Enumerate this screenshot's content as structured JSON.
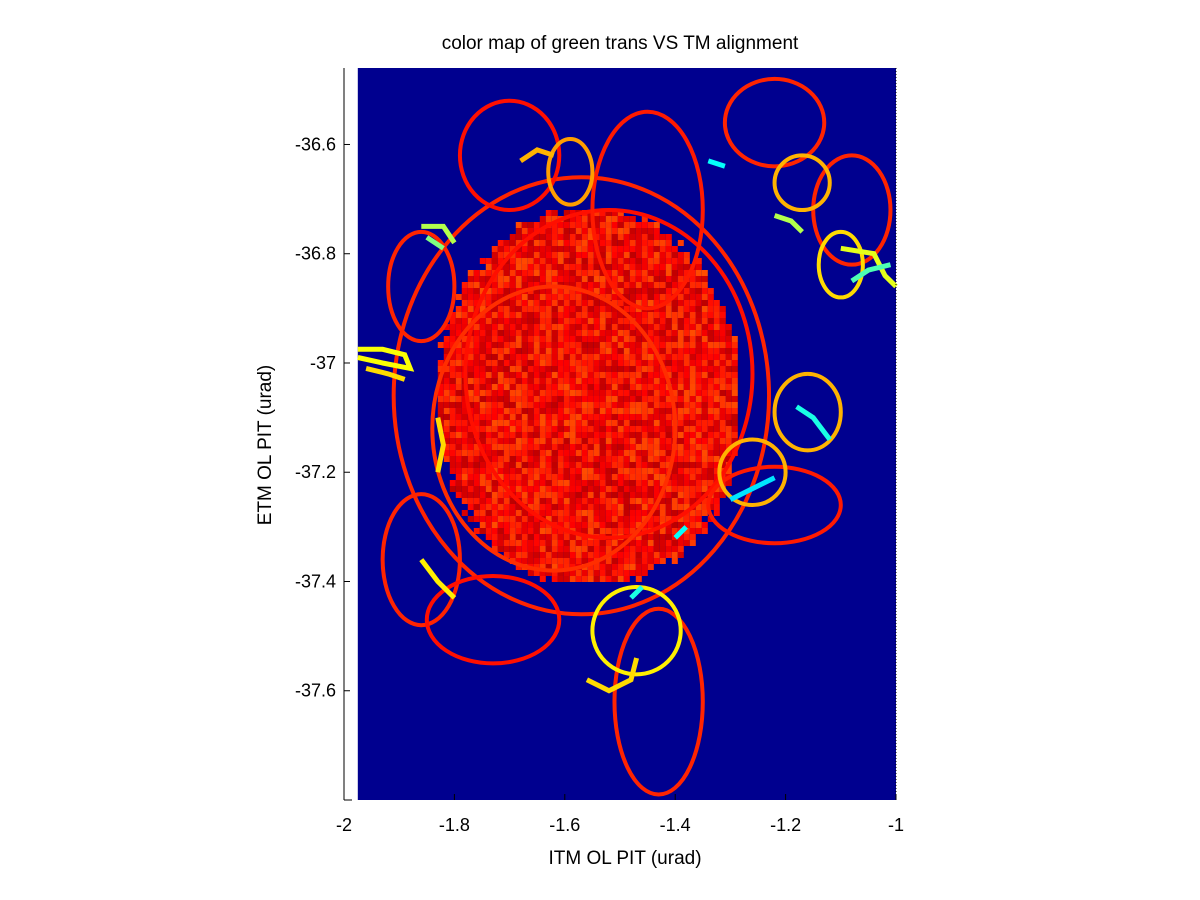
{
  "chart_data": {
    "type": "heatmap",
    "title": "color map of green trans VS TM alignment",
    "xlabel": "ITM OL PIT (urad)",
    "ylabel": "ETM OL PIT (urad)",
    "xlim": [
      -2,
      -1
    ],
    "ylim": [
      -37.8,
      -36.46
    ],
    "x_ticks": [
      -2,
      -1.8,
      -1.6,
      -1.4,
      -1.2,
      -1
    ],
    "x_tick_labels": [
      "-2",
      "-1.8",
      "-1.6",
      "-1.4",
      "-1.2",
      "-1"
    ],
    "y_ticks": [
      -36.6,
      -36.8,
      -37,
      -37.2,
      -37.4,
      -37.6
    ],
    "y_tick_labels": [
      "-36.6",
      "-36.8",
      "-37",
      "-37.2",
      "-37.4",
      "-37.6"
    ],
    "background_color": "#00008f",
    "colormap": "jet",
    "grid": false,
    "map_extent": {
      "x": [
        -1.975,
        -1.0
      ],
      "y": [
        -37.8,
        -36.46
      ]
    },
    "dense_core": {
      "center": [
        -1.56,
        -37.06
      ],
      "radius_x": 0.27,
      "radius_y": 0.34
    },
    "loops": [
      {
        "center": [
          -1.57,
          -37.06
        ],
        "radius_x": 0.34,
        "radius_y": 0.4,
        "level": 0.84
      },
      {
        "center": [
          -1.52,
          -37.02
        ],
        "radius_x": 0.26,
        "radius_y": 0.3,
        "level": 0.86
      },
      {
        "center": [
          -1.62,
          -37.12
        ],
        "radius_x": 0.22,
        "radius_y": 0.26,
        "level": 0.83
      },
      {
        "center": [
          -1.45,
          -36.72
        ],
        "radius_x": 0.1,
        "radius_y": 0.18,
        "level": 0.85
      },
      {
        "center": [
          -1.22,
          -36.56
        ],
        "radius_x": 0.09,
        "radius_y": 0.08,
        "level": 0.84
      },
      {
        "center": [
          -1.08,
          -36.72
        ],
        "radius_x": 0.07,
        "radius_y": 0.1,
        "level": 0.84
      },
      {
        "center": [
          -1.7,
          -36.62
        ],
        "radius_x": 0.09,
        "radius_y": 0.1,
        "level": 0.86
      },
      {
        "center": [
          -1.86,
          -36.86
        ],
        "radius_x": 0.06,
        "radius_y": 0.1,
        "level": 0.84
      },
      {
        "center": [
          -1.86,
          -37.36
        ],
        "radius_x": 0.07,
        "radius_y": 0.12,
        "level": 0.84
      },
      {
        "center": [
          -1.73,
          -37.47
        ],
        "radius_x": 0.12,
        "radius_y": 0.08,
        "level": 0.86
      },
      {
        "center": [
          -1.43,
          -37.62
        ],
        "radius_x": 0.08,
        "radius_y": 0.17,
        "level": 0.84
      },
      {
        "center": [
          -1.47,
          -37.49
        ],
        "radius_x": 0.08,
        "radius_y": 0.08,
        "level": 0.64
      },
      {
        "center": [
          -1.22,
          -37.26
        ],
        "radius_x": 0.12,
        "radius_y": 0.07,
        "level": 0.85
      },
      {
        "center": [
          -1.16,
          -37.09
        ],
        "radius_x": 0.06,
        "radius_y": 0.07,
        "level": 0.7
      },
      {
        "center": [
          -1.17,
          -36.67
        ],
        "radius_x": 0.05,
        "radius_y": 0.05,
        "level": 0.7
      },
      {
        "center": [
          -1.59,
          -36.65
        ],
        "radius_x": 0.04,
        "radius_y": 0.06,
        "level": 0.72
      },
      {
        "center": [
          -1.1,
          -36.82
        ],
        "radius_x": 0.04,
        "radius_y": 0.06,
        "level": 0.66
      },
      {
        "center": [
          -1.26,
          -37.2
        ],
        "radius_x": 0.06,
        "radius_y": 0.06,
        "level": 0.7
      }
    ],
    "highlight_segments": [
      {
        "points": [
          [
            -1.975,
            -36.975
          ],
          [
            -1.93,
            -36.975
          ],
          [
            -1.89,
            -36.985
          ],
          [
            -1.88,
            -37.01
          ],
          [
            -1.93,
            -37.0
          ],
          [
            -1.975,
            -36.99
          ]
        ],
        "level": 0.62
      },
      {
        "points": [
          [
            -1.96,
            -37.01
          ],
          [
            -1.92,
            -37.02
          ],
          [
            -1.89,
            -37.03
          ]
        ],
        "level": 0.66
      },
      {
        "points": [
          [
            -1.86,
            -36.75
          ],
          [
            -1.82,
            -36.75
          ],
          [
            -1.8,
            -36.78
          ]
        ],
        "level": 0.55
      },
      {
        "points": [
          [
            -1.85,
            -36.77
          ],
          [
            -1.82,
            -36.79
          ]
        ],
        "level": 0.5
      },
      {
        "points": [
          [
            -1.1,
            -36.79
          ],
          [
            -1.04,
            -36.8
          ],
          [
            -1.02,
            -36.84
          ],
          [
            -1.0,
            -36.86
          ]
        ],
        "level": 0.6
      },
      {
        "points": [
          [
            -1.08,
            -36.85
          ],
          [
            -1.05,
            -36.83
          ],
          [
            -1.01,
            -36.82
          ]
        ],
        "level": 0.45
      },
      {
        "points": [
          [
            -1.22,
            -36.73
          ],
          [
            -1.19,
            -36.74
          ],
          [
            -1.17,
            -36.76
          ]
        ],
        "level": 0.55
      },
      {
        "points": [
          [
            -1.34,
            -36.63
          ],
          [
            -1.31,
            -36.64
          ]
        ],
        "level": 0.38
      },
      {
        "points": [
          [
            -1.18,
            -37.08
          ],
          [
            -1.15,
            -37.1
          ],
          [
            -1.12,
            -37.14
          ]
        ],
        "level": 0.4
      },
      {
        "points": [
          [
            -1.3,
            -37.25
          ],
          [
            -1.26,
            -37.23
          ],
          [
            -1.22,
            -37.21
          ]
        ],
        "level": 0.35
      },
      {
        "points": [
          [
            -1.4,
            -37.32
          ],
          [
            -1.38,
            -37.3
          ]
        ],
        "level": 0.38
      },
      {
        "points": [
          [
            -1.48,
            -37.43
          ],
          [
            -1.46,
            -37.41
          ]
        ],
        "level": 0.4
      },
      {
        "points": [
          [
            -1.56,
            -37.58
          ],
          [
            -1.52,
            -37.6
          ],
          [
            -1.48,
            -37.58
          ],
          [
            -1.47,
            -37.54
          ]
        ],
        "level": 0.66
      },
      {
        "points": [
          [
            -1.86,
            -37.36
          ],
          [
            -1.83,
            -37.4
          ],
          [
            -1.8,
            -37.43
          ]
        ],
        "level": 0.64
      },
      {
        "points": [
          [
            -1.83,
            -37.1
          ],
          [
            -1.82,
            -37.15
          ],
          [
            -1.83,
            -37.2
          ]
        ],
        "level": 0.66
      },
      {
        "points": [
          [
            -1.68,
            -36.63
          ],
          [
            -1.65,
            -36.61
          ],
          [
            -1.62,
            -36.62
          ]
        ],
        "level": 0.7
      }
    ]
  }
}
